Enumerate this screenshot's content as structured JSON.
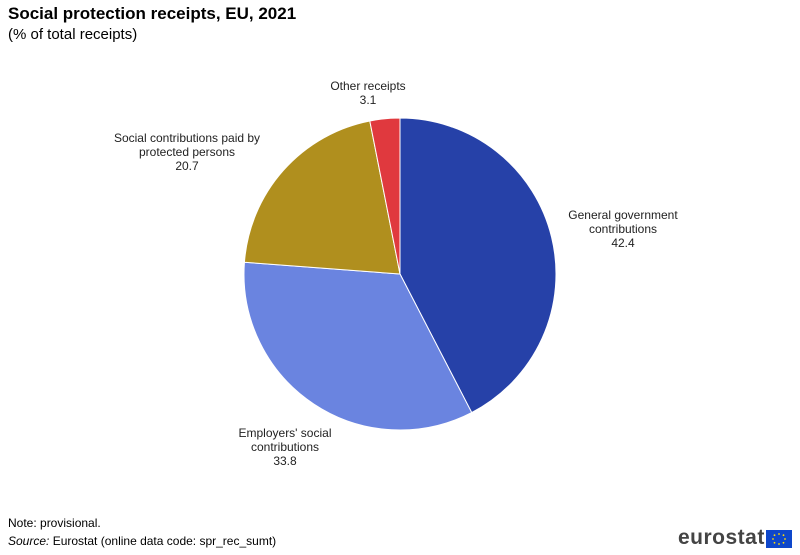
{
  "chart_data": {
    "type": "pie",
    "title": "Social protection receipts, EU, 2021",
    "subtitle": "(% of total receipts)",
    "categories": [
      "General government contributions",
      "Employers' social contributions",
      "Social contributions paid by protected persons",
      "Other receipts"
    ],
    "values": [
      42.4,
      33.8,
      20.7,
      3.1
    ],
    "colors": [
      "#2641a8",
      "#6a84e0",
      "#b08f1e",
      "#e0393e"
    ],
    "note": "Note: provisional.",
    "source_label": "Source:",
    "source": "Eurostat (online data code: spr_rec_sumt)",
    "logo": "eurostat"
  }
}
